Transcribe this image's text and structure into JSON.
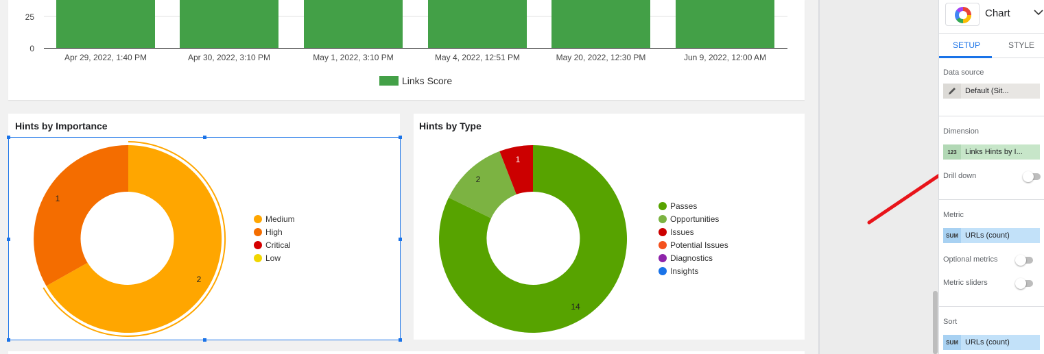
{
  "top_chart": {
    "y_ticks": [
      "25",
      "0"
    ],
    "categories": [
      "Apr 29, 2022, 1:40 PM",
      "Apr 30, 2022, 3:10 PM",
      "May 1, 2022, 3:10 PM",
      "May 4, 2022, 12:51 PM",
      "May 20, 2022, 12:30 PM",
      "Jun 9, 2022, 12:00 AM"
    ],
    "legend_label": "Links Score",
    "color": "#43a047"
  },
  "importance_chart": {
    "title": "Hints by Importance",
    "slices": [
      {
        "label": "Medium",
        "value": 2,
        "color": "#ffa600"
      },
      {
        "label": "High",
        "value": 1,
        "color": "#f46d00"
      },
      {
        "label": "Critical",
        "value": 0,
        "color": "#d50000"
      },
      {
        "label": "Low",
        "value": 0,
        "color": "#f1d600"
      }
    ],
    "data_labels": [
      "1",
      "2"
    ]
  },
  "type_chart": {
    "title": "Hints by Type",
    "slices": [
      {
        "label": "Passes",
        "value": 14,
        "color": "#57a300"
      },
      {
        "label": "Opportunities",
        "value": 2,
        "color": "#7cb342"
      },
      {
        "label": "Issues",
        "value": 1,
        "color": "#cc0000"
      },
      {
        "label": "Potential Issues",
        "value": 0,
        "color": "#f4511e"
      },
      {
        "label": "Diagnostics",
        "value": 0,
        "color": "#8e24aa"
      },
      {
        "label": "Insights",
        "value": 0,
        "color": "#1a73e8"
      }
    ],
    "data_labels": [
      "1",
      "2",
      "14"
    ]
  },
  "panel": {
    "chart_type": "Chart",
    "tabs": {
      "setup": "SETUP",
      "style": "STYLE"
    },
    "data_source": {
      "label": "Data source",
      "value": "Default (Sit..."
    },
    "dimension": {
      "label": "Dimension",
      "type": "123",
      "value": "Links Hints by I..."
    },
    "drill_down": "Drill down",
    "metric": {
      "label": "Metric",
      "type": "SUM",
      "value": "URLs (count)"
    },
    "optional_metrics": "Optional metrics",
    "metric_sliders": "Metric sliders",
    "sort": {
      "label": "Sort",
      "type": "SUM",
      "value": "URLs (count)"
    }
  }
}
